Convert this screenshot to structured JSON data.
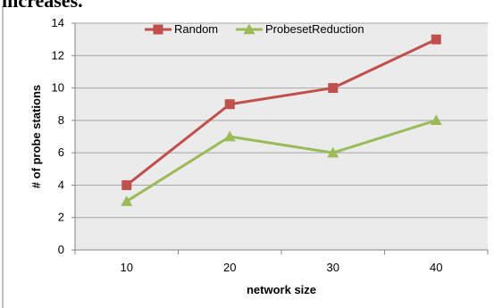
{
  "page": {
    "top_text": "increases."
  },
  "colors": {
    "random": "#c0504d",
    "probeset": "#9bbb59",
    "plot_bg": "#ebebeb",
    "grid": "#a6a6a6"
  },
  "chart_data": {
    "type": "line",
    "categories": [
      "10",
      "20",
      "30",
      "40"
    ],
    "series": [
      {
        "name": "Random",
        "values": [
          4,
          9,
          10,
          13
        ],
        "marker": "square"
      },
      {
        "name": "ProbesetReduction",
        "values": [
          3,
          7,
          6,
          8
        ],
        "marker": "triangle"
      }
    ],
    "xlabel": "network size",
    "ylabel": "# of probe stations",
    "ylim": [
      0,
      14
    ],
    "yticks": [
      0,
      2,
      4,
      6,
      8,
      10,
      12,
      14
    ],
    "grid": true,
    "legend": "top-center"
  }
}
